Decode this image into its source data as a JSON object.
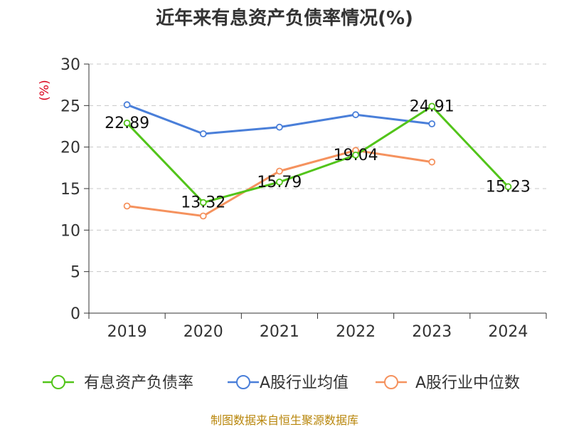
{
  "chart_data": {
    "type": "line",
    "title": "近年来有息资产负债率情况(%)",
    "ylabel": "(%)",
    "categories": [
      "2019",
      "2020",
      "2021",
      "2022",
      "2023",
      "2024"
    ],
    "ylim": [
      0,
      30
    ],
    "yticks": [
      0,
      5,
      10,
      15,
      20,
      25,
      30
    ],
    "grid": true,
    "legend_position": "bottom",
    "series": [
      {
        "name": "有息资产负债率",
        "color": "#52c41a",
        "values": [
          22.89,
          13.32,
          15.79,
          19.04,
          24.91,
          15.23
        ],
        "labels": [
          "22.89",
          "13.32",
          "15.79",
          "19.04",
          "24.91",
          "15.23"
        ]
      },
      {
        "name": "A股行业均值",
        "color": "#4a7fd9",
        "values": [
          25.1,
          21.6,
          22.4,
          23.9,
          22.8,
          null
        ]
      },
      {
        "name": "A股行业中位数",
        "color": "#f5925e",
        "values": [
          12.9,
          11.7,
          17.1,
          19.6,
          18.2,
          null
        ]
      }
    ]
  },
  "source": "制图数据来自恒生聚源数据库"
}
